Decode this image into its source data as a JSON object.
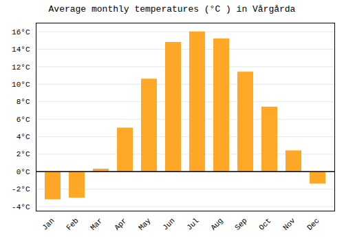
{
  "chart_data": {
    "type": "bar",
    "title": "Average monthly temperatures (°C ) in Vårgårda",
    "categories": [
      "Jan",
      "Feb",
      "Mar",
      "Apr",
      "May",
      "Jun",
      "Jul",
      "Aug",
      "Sep",
      "Oct",
      "Nov",
      "Dec"
    ],
    "values": [
      -3.2,
      -3.0,
      0.3,
      5.0,
      10.6,
      14.8,
      16.0,
      15.2,
      11.4,
      7.4,
      2.4,
      -1.4
    ],
    "color": "#FFA726",
    "ylim": [
      -4.5,
      17
    ],
    "yticks": [
      {
        "value": -4,
        "label": "-4°C"
      },
      {
        "value": -2,
        "label": "-2°C"
      },
      {
        "value": 0,
        "label": "0°C"
      },
      {
        "value": 2,
        "label": "2°C"
      },
      {
        "value": 4,
        "label": "4°C"
      },
      {
        "value": 6,
        "label": "6°C"
      },
      {
        "value": 8,
        "label": "8°C"
      },
      {
        "value": 10,
        "label": "10°C"
      },
      {
        "value": 12,
        "label": "12°C"
      },
      {
        "value": 14,
        "label": "14°C"
      },
      {
        "value": 16,
        "label": "16°C"
      }
    ],
    "grid": true
  }
}
